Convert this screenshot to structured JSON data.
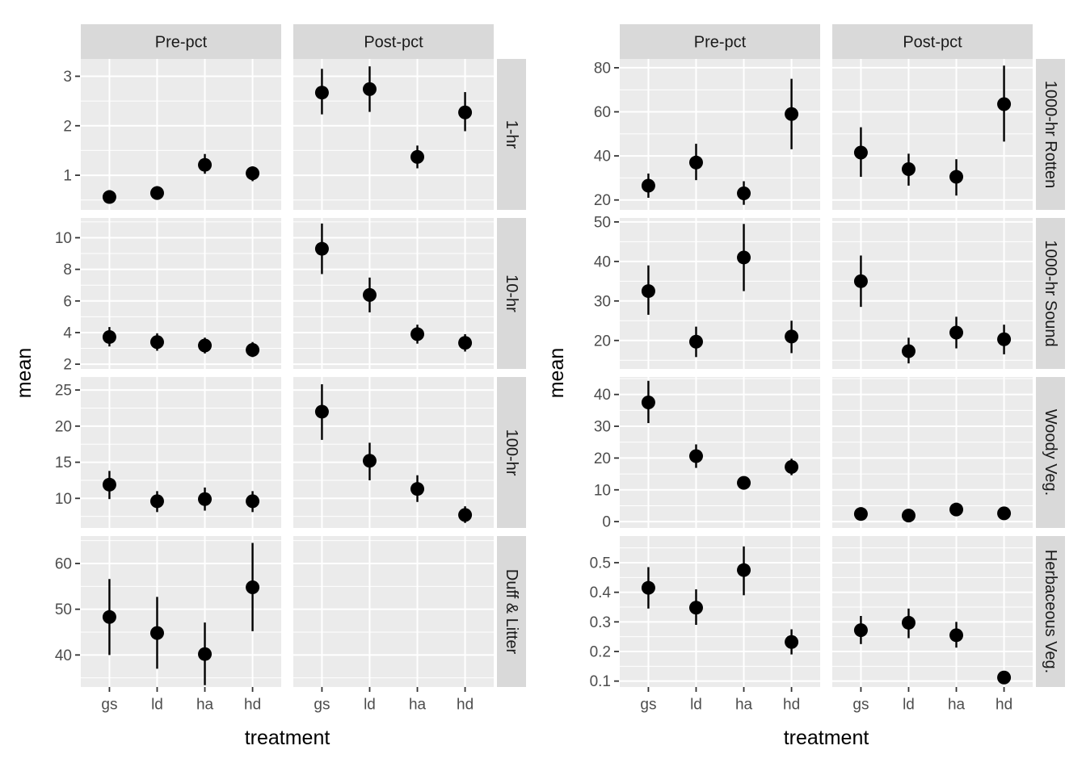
{
  "figure": {
    "background": "#FFFFFF",
    "panel_bg": "#EBEBEB",
    "strip_bg": "#D9D9D9",
    "grid_color": "#FFFFFF",
    "point_color": "#000000",
    "tick_mark_color": "#333333",
    "tick_label_color": "#4D4D4D",
    "axis_title_color": "#000000",
    "strip_text_color": "#1A1A1A"
  },
  "chart_data": [
    {
      "type": "pointrange",
      "position": "left",
      "xlabel": "treatment",
      "ylabel": "mean",
      "legend": "none",
      "grid": true,
      "facet_cols": [
        "Pre-pct",
        "Post-pct"
      ],
      "categories": [
        "gs",
        "ld",
        "ha",
        "hd"
      ],
      "rows": [
        {
          "label": "1-hr",
          "ylim": [
            0.3,
            3.35
          ],
          "yticks": [
            1,
            2,
            3
          ],
          "panels": [
            {
              "col": "Pre-pct",
              "points": [
                {
                  "x": "gs",
                  "mean": 0.56,
                  "lower": 0.44,
                  "upper": 0.7
                },
                {
                  "x": "ld",
                  "mean": 0.64,
                  "lower": 0.51,
                  "upper": 0.78
                },
                {
                  "x": "ha",
                  "mean": 1.21,
                  "lower": 1.03,
                  "upper": 1.43
                },
                {
                  "x": "hd",
                  "mean": 1.04,
                  "lower": 0.88,
                  "upper": 1.18
                }
              ]
            },
            {
              "col": "Post-pct",
              "points": [
                {
                  "x": "gs",
                  "mean": 2.67,
                  "lower": 2.23,
                  "upper": 3.15
                },
                {
                  "x": "ld",
                  "mean": 2.74,
                  "lower": 2.28,
                  "upper": 3.2
                },
                {
                  "x": "ha",
                  "mean": 1.37,
                  "lower": 1.14,
                  "upper": 1.6
                },
                {
                  "x": "hd",
                  "mean": 2.27,
                  "lower": 1.89,
                  "upper": 2.68
                }
              ]
            }
          ]
        },
        {
          "label": "10-hr",
          "ylim": [
            1.7,
            11.25
          ],
          "yticks": [
            2,
            4,
            6,
            8,
            10
          ],
          "panels": [
            {
              "col": "Pre-pct",
              "points": [
                {
                  "x": "gs",
                  "mean": 3.72,
                  "lower": 3.12,
                  "upper": 4.35
                },
                {
                  "x": "ld",
                  "mean": 3.4,
                  "lower": 2.85,
                  "upper": 3.95
                },
                {
                  "x": "ha",
                  "mean": 3.18,
                  "lower": 2.68,
                  "upper": 3.68
                },
                {
                  "x": "hd",
                  "mean": 2.9,
                  "lower": 2.45,
                  "upper": 3.4
                }
              ]
            },
            {
              "col": "Post-pct",
              "points": [
                {
                  "x": "gs",
                  "mean": 9.3,
                  "lower": 7.7,
                  "upper": 10.9
                },
                {
                  "x": "ld",
                  "mean": 6.38,
                  "lower": 5.28,
                  "upper": 7.48
                },
                {
                  "x": "ha",
                  "mean": 3.9,
                  "lower": 3.3,
                  "upper": 4.5
                },
                {
                  "x": "hd",
                  "mean": 3.35,
                  "lower": 2.8,
                  "upper": 3.9
                }
              ]
            }
          ]
        },
        {
          "label": "100-hr",
          "ylim": [
            5.9,
            26.8
          ],
          "yticks": [
            10,
            15,
            20,
            25
          ],
          "panels": [
            {
              "col": "Pre-pct",
              "points": [
                {
                  "x": "gs",
                  "mean": 11.9,
                  "lower": 9.9,
                  "upper": 13.8
                },
                {
                  "x": "ld",
                  "mean": 9.6,
                  "lower": 8.1,
                  "upper": 11.0
                },
                {
                  "x": "ha",
                  "mean": 9.9,
                  "lower": 8.3,
                  "upper": 11.5
                },
                {
                  "x": "hd",
                  "mean": 9.6,
                  "lower": 8.1,
                  "upper": 11.0
                }
              ]
            },
            {
              "col": "Post-pct",
              "points": [
                {
                  "x": "gs",
                  "mean": 22.0,
                  "lower": 18.1,
                  "upper": 25.8
                },
                {
                  "x": "ld",
                  "mean": 15.2,
                  "lower": 12.5,
                  "upper": 17.7
                },
                {
                  "x": "ha",
                  "mean": 11.3,
                  "lower": 9.5,
                  "upper": 13.2
                },
                {
                  "x": "hd",
                  "mean": 7.7,
                  "lower": 6.6,
                  "upper": 8.9
                }
              ]
            }
          ]
        },
        {
          "label": "Duff & Litter",
          "ylim": [
            33,
            66
          ],
          "yticks": [
            40,
            50,
            60
          ],
          "panels": [
            {
              "col": "Pre-pct",
              "points": [
                {
                  "x": "gs",
                  "mean": 48.3,
                  "lower": 40.0,
                  "upper": 56.6
                },
                {
                  "x": "ld",
                  "mean": 44.8,
                  "lower": 37.0,
                  "upper": 52.7
                },
                {
                  "x": "ha",
                  "mean": 40.2,
                  "lower": 33.4,
                  "upper": 47.1
                },
                {
                  "x": "hd",
                  "mean": 54.8,
                  "lower": 45.2,
                  "upper": 64.5
                }
              ]
            },
            {
              "col": "Post-pct",
              "points": []
            }
          ]
        }
      ]
    },
    {
      "type": "pointrange",
      "position": "right",
      "xlabel": "treatment",
      "ylabel": "mean",
      "legend": "none",
      "grid": true,
      "facet_cols": [
        "Pre-pct",
        "Post-pct"
      ],
      "categories": [
        "gs",
        "ld",
        "ha",
        "hd"
      ],
      "rows": [
        {
          "label": "1000-hr Rotten",
          "ylim": [
            15.5,
            84
          ],
          "yticks": [
            20,
            40,
            60,
            80
          ],
          "panels": [
            {
              "col": "Pre-pct",
              "points": [
                {
                  "x": "gs",
                  "mean": 26.5,
                  "lower": 21.0,
                  "upper": 32.0
                },
                {
                  "x": "ld",
                  "mean": 37.0,
                  "lower": 29.0,
                  "upper": 45.5
                },
                {
                  "x": "ha",
                  "mean": 23.0,
                  "lower": 17.8,
                  "upper": 28.5
                },
                {
                  "x": "hd",
                  "mean": 59.0,
                  "lower": 43.0,
                  "upper": 75.0
                }
              ]
            },
            {
              "col": "Post-pct",
              "points": [
                {
                  "x": "gs",
                  "mean": 41.5,
                  "lower": 30.5,
                  "upper": 53.0
                },
                {
                  "x": "ld",
                  "mean": 34.0,
                  "lower": 26.5,
                  "upper": 41.0
                },
                {
                  "x": "ha",
                  "mean": 30.5,
                  "lower": 22.0,
                  "upper": 38.5
                },
                {
                  "x": "hd",
                  "mean": 63.5,
                  "lower": 46.5,
                  "upper": 81.0
                }
              ]
            }
          ]
        },
        {
          "label": "1000-hr Sound",
          "ylim": [
            12.8,
            51
          ],
          "yticks": [
            20,
            30,
            40,
            50
          ],
          "panels": [
            {
              "col": "Pre-pct",
              "points": [
                {
                  "x": "gs",
                  "mean": 32.5,
                  "lower": 26.5,
                  "upper": 39.0
                },
                {
                  "x": "ld",
                  "mean": 19.7,
                  "lower": 15.8,
                  "upper": 23.5
                },
                {
                  "x": "ha",
                  "mean": 41.0,
                  "lower": 32.5,
                  "upper": 49.5
                },
                {
                  "x": "hd",
                  "mean": 21.0,
                  "lower": 16.8,
                  "upper": 25.0
                }
              ]
            },
            {
              "col": "Post-pct",
              "points": [
                {
                  "x": "gs",
                  "mean": 35.0,
                  "lower": 28.5,
                  "upper": 41.5
                },
                {
                  "x": "ld",
                  "mean": 17.3,
                  "lower": 14.2,
                  "upper": 20.7
                },
                {
                  "x": "ha",
                  "mean": 22.0,
                  "lower": 18.0,
                  "upper": 26.0
                },
                {
                  "x": "hd",
                  "mean": 20.3,
                  "lower": 16.5,
                  "upper": 24.0
                }
              ]
            }
          ]
        },
        {
          "label": "Woody Veg.",
          "ylim": [
            -2,
            45.5
          ],
          "yticks": [
            0,
            10,
            20,
            30,
            40
          ],
          "panels": [
            {
              "col": "Pre-pct",
              "points": [
                {
                  "x": "gs",
                  "mean": 37.5,
                  "lower": 31.0,
                  "upper": 44.3
                },
                {
                  "x": "ld",
                  "mean": 20.6,
                  "lower": 16.9,
                  "upper": 24.3
                },
                {
                  "x": "ha",
                  "mean": 12.2,
                  "lower": 10.7,
                  "upper": 13.9
                },
                {
                  "x": "hd",
                  "mean": 17.2,
                  "lower": 14.6,
                  "upper": 19.8
                }
              ]
            },
            {
              "col": "Post-pct",
              "points": [
                {
                  "x": "gs",
                  "mean": 2.4,
                  "lower": 1.7,
                  "upper": 3.1
                },
                {
                  "x": "ld",
                  "mean": 1.9,
                  "lower": 1.2,
                  "upper": 2.6
                },
                {
                  "x": "ha",
                  "mean": 3.8,
                  "lower": 2.9,
                  "upper": 4.7
                },
                {
                  "x": "hd",
                  "mean": 2.6,
                  "lower": 1.9,
                  "upper": 3.3
                }
              ]
            }
          ]
        },
        {
          "label": "Herbaceous Veg.",
          "ylim": [
            0.08,
            0.59
          ],
          "yticks": [
            0.1,
            0.2,
            0.3,
            0.4,
            0.5
          ],
          "panels": [
            {
              "col": "Pre-pct",
              "points": [
                {
                  "x": "gs",
                  "mean": 0.415,
                  "lower": 0.345,
                  "upper": 0.485
                },
                {
                  "x": "ld",
                  "mean": 0.348,
                  "lower": 0.29,
                  "upper": 0.41
                },
                {
                  "x": "ha",
                  "mean": 0.475,
                  "lower": 0.39,
                  "upper": 0.555
                },
                {
                  "x": "hd",
                  "mean": 0.232,
                  "lower": 0.19,
                  "upper": 0.275
                }
              ]
            },
            {
              "col": "Post-pct",
              "points": [
                {
                  "x": "gs",
                  "mean": 0.272,
                  "lower": 0.225,
                  "upper": 0.32
                },
                {
                  "x": "ld",
                  "mean": 0.297,
                  "lower": 0.245,
                  "upper": 0.345
                },
                {
                  "x": "ha",
                  "mean": 0.255,
                  "lower": 0.213,
                  "upper": 0.3
                },
                {
                  "x": "hd",
                  "mean": 0.112,
                  "lower": 0.098,
                  "upper": 0.128
                }
              ]
            }
          ]
        }
      ]
    }
  ]
}
